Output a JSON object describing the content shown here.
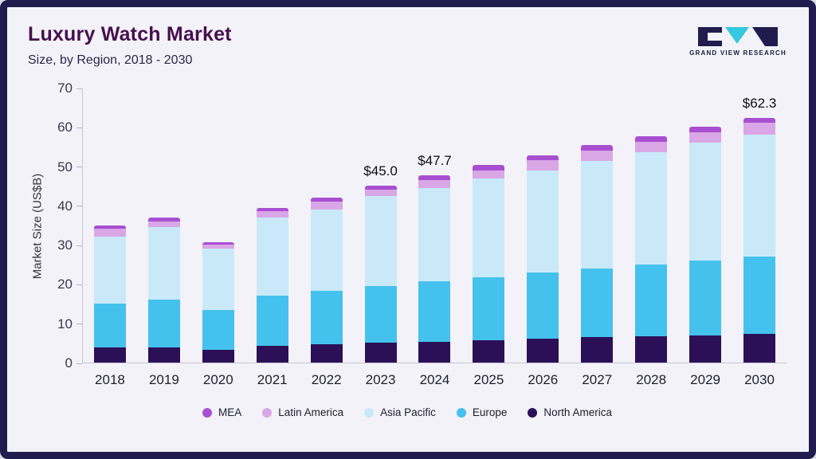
{
  "header": {
    "title": "Luxury Watch Market",
    "subtitle": "Size, by Region, 2018 - 2030",
    "logo_text": "GRAND VIEW RESEARCH"
  },
  "brand_colors": {
    "frame_border": "#221c4e",
    "title_text": "#46104f",
    "logo_teal": "#35c8e0",
    "background": "#f3f2f8"
  },
  "chart_data": {
    "type": "bar",
    "stacked": true,
    "title": "Luxury Watch Market Size, by Region, 2018 - 2030",
    "xlabel": "",
    "ylabel": "Market Size (US$B)",
    "ylim": [
      0,
      70
    ],
    "yticks": [
      0,
      10,
      20,
      30,
      40,
      50,
      60,
      70
    ],
    "grid": false,
    "legend_position": "bottom",
    "categories": [
      "2018",
      "2019",
      "2020",
      "2021",
      "2022",
      "2023",
      "2024",
      "2025",
      "2026",
      "2027",
      "2028",
      "2029",
      "2030"
    ],
    "series": [
      {
        "name": "North America",
        "color": "#2b1057",
        "values": [
          3.8,
          3.9,
          3.3,
          4.3,
          4.6,
          5.0,
          5.2,
          5.6,
          6.0,
          6.4,
          6.7,
          7.0,
          7.4
        ]
      },
      {
        "name": "Europe",
        "color": "#45c1ed",
        "values": [
          11.2,
          12.1,
          10.0,
          12.7,
          13.6,
          14.5,
          15.5,
          16.1,
          16.9,
          17.5,
          18.2,
          18.9,
          19.5
        ]
      },
      {
        "name": "Asia Pacific",
        "color": "#c9e9f8",
        "values": [
          17.0,
          18.5,
          15.7,
          20.0,
          20.8,
          23.0,
          23.8,
          25.1,
          26.1,
          27.4,
          28.7,
          30.1,
          31.1
        ]
      },
      {
        "name": "Latin America",
        "color": "#d9a7e6",
        "values": [
          2.0,
          1.5,
          1.1,
          1.5,
          2.0,
          1.5,
          2.0,
          2.2,
          2.5,
          2.7,
          2.7,
          2.7,
          3.0
        ]
      },
      {
        "name": "MEA",
        "color": "#a94fd1",
        "values": [
          1.0,
          1.0,
          0.6,
          0.8,
          1.0,
          1.0,
          1.2,
          1.3,
          1.2,
          1.3,
          1.4,
          1.3,
          1.3
        ]
      }
    ],
    "totals": [
      35.0,
      37.0,
      30.7,
      39.3,
      42.0,
      45.0,
      47.7,
      50.3,
      52.7,
      55.3,
      57.7,
      60.0,
      62.3
    ],
    "annotations": [
      {
        "category": "2023",
        "text": "$45.0"
      },
      {
        "category": "2024",
        "text": "$47.7"
      },
      {
        "category": "2030",
        "text": "$62.3"
      }
    ],
    "legend_order": [
      "MEA",
      "Latin America",
      "Asia Pacific",
      "Europe",
      "North America"
    ]
  }
}
